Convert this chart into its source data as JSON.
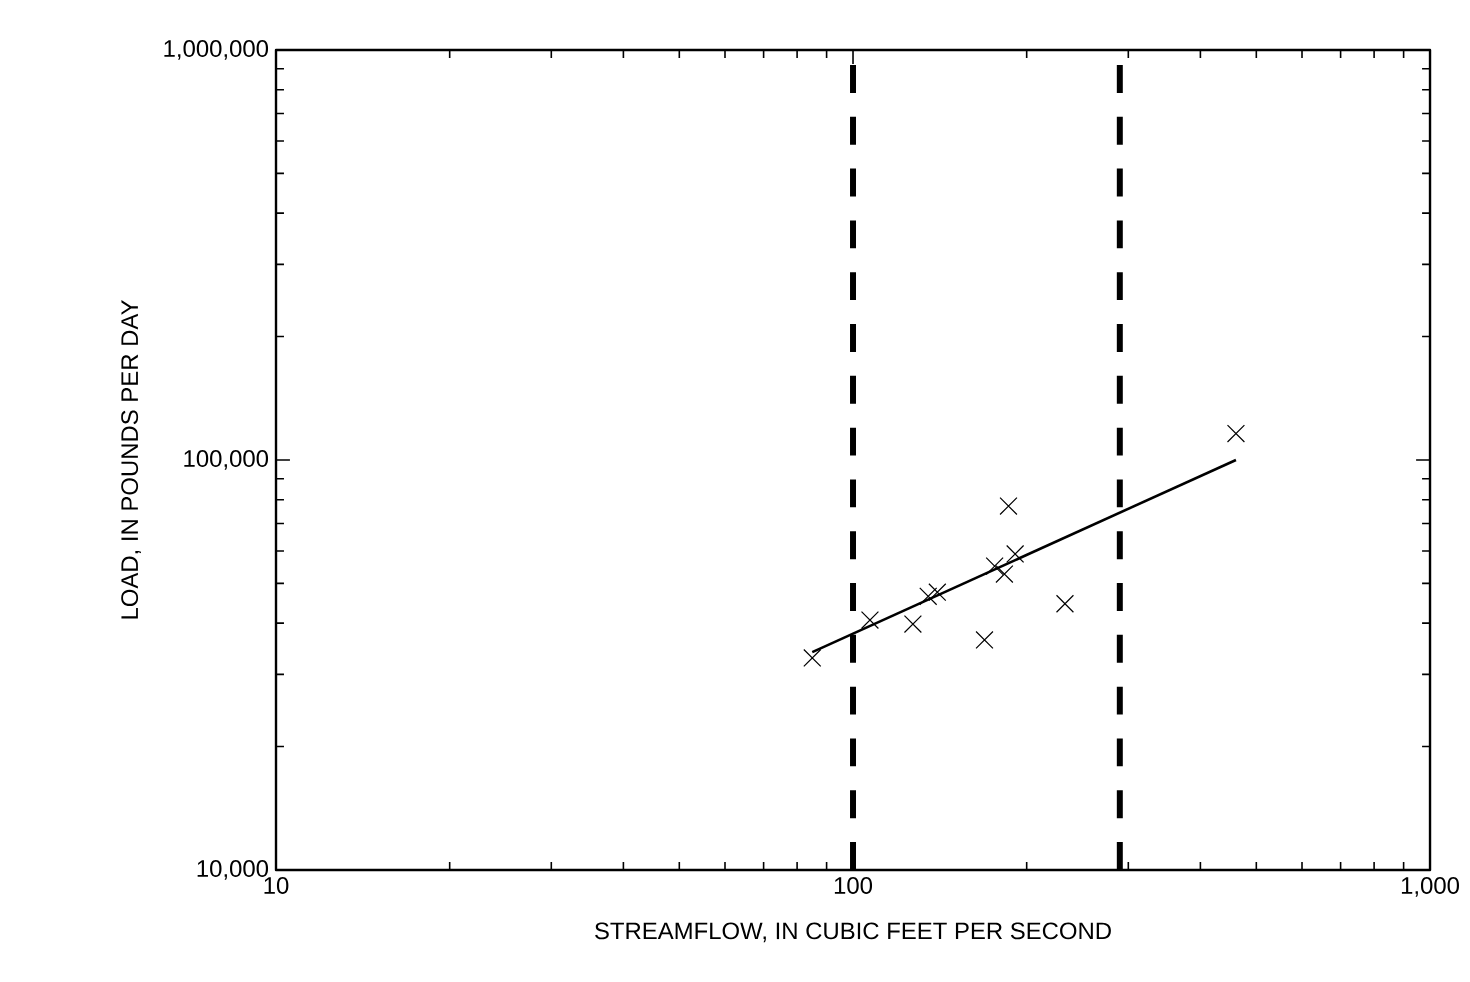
{
  "chart_data": {
    "type": "scatter",
    "xlabel": "STREAMFLOW, IN CUBIC FEET PER SECOND",
    "ylabel": "LOAD, IN POUNDS PER DAY",
    "log": "xy",
    "xlim": [
      10,
      1000
    ],
    "ylim": [
      10000,
      1000000
    ],
    "xticks": [
      10,
      100,
      {
        "value": 1000,
        "label": "1,000"
      }
    ],
    "yticks": [
      {
        "value": 10000,
        "label": "10,000"
      },
      {
        "value": 100000,
        "label": "100,000"
      },
      {
        "value": 1000000,
        "label": "1,000,000"
      }
    ],
    "x": [
      85,
      107,
      127,
      135,
      140,
      169,
      176,
      183,
      186,
      191,
      233,
      461
    ],
    "series": [
      {
        "color": "#000000",
        "marker": "cross",
        "values": [
          32900,
          40700,
          39800,
          46500,
          47600,
          36400,
          55100,
          52700,
          77200,
          59000,
          44600,
          116000
        ]
      },
      {
        "type": "line",
        "color": "#000000",
        "x": [
          85,
          461
        ],
        "values": [
          34000,
          100000
        ]
      }
    ],
    "ref_lines": [
      {
        "axis": "x",
        "value": 100,
        "color": "#000000",
        "line_style": "dashed"
      },
      {
        "axis": "x",
        "value": 290,
        "color": "#000000",
        "line_style": "dashed"
      }
    ]
  }
}
